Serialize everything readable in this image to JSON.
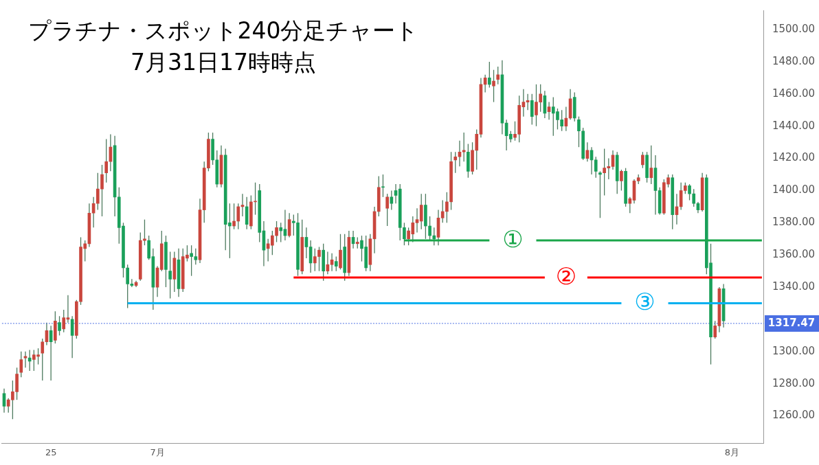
{
  "chart_data": {
    "type": "candlestick",
    "title": "プラチナ・スポット240分足チャート",
    "subtitle": "7月31日17時時点",
    "categories": [
      null,
      null,
      null,
      null,
      null,
      null,
      null,
      null,
      null,
      null,
      null,
      "25",
      null,
      null,
      null,
      null,
      null,
      null,
      null,
      null,
      null,
      null,
      null,
      null,
      null,
      null,
      null,
      null,
      null,
      null,
      null,
      null,
      null,
      null,
      null,
      null,
      "7月",
      null,
      null,
      null,
      null,
      null,
      null,
      null,
      null,
      null,
      null,
      null,
      null,
      null,
      null,
      null,
      null,
      null,
      null,
      null,
      null,
      null,
      null,
      null,
      null,
      null,
      null,
      null,
      null,
      null,
      null,
      null,
      null,
      null,
      null,
      null,
      null,
      null,
      null,
      null,
      null,
      null,
      null,
      null,
      null,
      null,
      null,
      null,
      null,
      null,
      null,
      null,
      null,
      null,
      null,
      null,
      null,
      null,
      null,
      null,
      null,
      null,
      null,
      null,
      null,
      null,
      null,
      null,
      null,
      null,
      null,
      null,
      null,
      null,
      null,
      null,
      null,
      null,
      null,
      null,
      null,
      null,
      null,
      null,
      null,
      null,
      null,
      null,
      null,
      null,
      null,
      null,
      null,
      null,
      null,
      null,
      null,
      null,
      null,
      null,
      null,
      null,
      null,
      null,
      null,
      null,
      null,
      null,
      null,
      null,
      null,
      null,
      null,
      null,
      null,
      null,
      null,
      null,
      null,
      null,
      null,
      null,
      null,
      null,
      null,
      null,
      null,
      null,
      null,
      null,
      null,
      null,
      null,
      null,
      null,
      "8月",
      null,
      null,
      null,
      null,
      null,
      null,
      null
    ],
    "ohlc": [
      [
        1274,
        1277,
        1262,
        1266
      ],
      [
        1266,
        1271,
        1262,
        1270
      ],
      [
        1270,
        1282,
        1258,
        1275
      ],
      [
        1275,
        1290,
        1270,
        1286
      ],
      [
        1287,
        1300,
        1284,
        1295
      ],
      [
        1296,
        1300,
        1290,
        1297
      ],
      [
        1296,
        1301,
        1288,
        1294
      ],
      [
        1295,
        1301,
        1288,
        1298
      ],
      [
        1297,
        1302,
        1292,
        1298
      ],
      [
        1299,
        1308,
        1282,
        1306
      ],
      [
        1306,
        1318,
        1304,
        1313
      ],
      [
        1313,
        1316,
        1282,
        1306
      ],
      [
        1307,
        1325,
        1305,
        1319
      ],
      [
        1318,
        1322,
        1310,
        1313
      ],
      [
        1314,
        1326,
        1312,
        1321
      ],
      [
        1320,
        1335,
        1318,
        1321
      ],
      [
        1320,
        1322,
        1296,
        1310
      ],
      [
        1310,
        1332,
        1308,
        1331
      ],
      [
        1331,
        1371,
        1329,
        1365
      ],
      [
        1364,
        1369,
        1356,
        1367
      ],
      [
        1367,
        1392,
        1365,
        1386
      ],
      [
        1386,
        1396,
        1377,
        1392
      ],
      [
        1392,
        1411,
        1388,
        1401
      ],
      [
        1401,
        1416,
        1384,
        1410
      ],
      [
        1411,
        1432,
        1405,
        1418
      ],
      [
        1418,
        1435,
        1412,
        1427
      ],
      [
        1428,
        1434,
        1384,
        1396
      ],
      [
        1396,
        1402,
        1367,
        1377
      ],
      [
        1378,
        1380,
        1346,
        1352
      ],
      [
        1352,
        1354,
        1327,
        1342
      ],
      [
        1342,
        1345,
        1340,
        1341
      ],
      [
        1341,
        1344,
        1340,
        1343
      ],
      [
        1345,
        1374,
        1344,
        1369
      ],
      [
        1369,
        1382,
        1366,
        1370
      ],
      [
        1369,
        1372,
        1357,
        1358
      ],
      [
        1359,
        1364,
        1326,
        1340
      ],
      [
        1340,
        1353,
        1334,
        1352
      ],
      [
        1351,
        1375,
        1350,
        1367
      ],
      [
        1368,
        1372,
        1340,
        1351
      ],
      [
        1350,
        1362,
        1333,
        1345
      ],
      [
        1345,
        1362,
        1337,
        1358
      ],
      [
        1357,
        1364,
        1334,
        1339
      ],
      [
        1339,
        1364,
        1337,
        1359
      ],
      [
        1358,
        1366,
        1356,
        1360
      ],
      [
        1361,
        1366,
        1347,
        1359
      ],
      [
        1359,
        1364,
        1354,
        1357
      ],
      [
        1357,
        1395,
        1355,
        1388
      ],
      [
        1388,
        1418,
        1380,
        1414
      ],
      [
        1414,
        1436,
        1412,
        1432
      ],
      [
        1432,
        1436,
        1416,
        1419
      ],
      [
        1419,
        1425,
        1402,
        1404
      ],
      [
        1404,
        1428,
        1402,
        1422
      ],
      [
        1422,
        1426,
        1363,
        1379
      ],
      [
        1380,
        1392,
        1358,
        1378
      ],
      [
        1378,
        1392,
        1376,
        1381
      ],
      [
        1381,
        1392,
        1376,
        1390
      ],
      [
        1390,
        1398,
        1384,
        1391
      ],
      [
        1390,
        1396,
        1376,
        1379
      ],
      [
        1378,
        1397,
        1376,
        1393
      ],
      [
        1393,
        1405,
        1385,
        1393
      ],
      [
        1400,
        1404,
        1368,
        1374
      ],
      [
        1375,
        1381,
        1353,
        1363
      ],
      [
        1364,
        1370,
        1356,
        1367
      ],
      [
        1366,
        1375,
        1360,
        1372
      ],
      [
        1372,
        1381,
        1368,
        1377
      ],
      [
        1377,
        1380,
        1368,
        1375
      ],
      [
        1376,
        1388,
        1369,
        1372
      ],
      [
        1372,
        1386,
        1371,
        1382
      ],
      [
        1381,
        1385,
        1372,
        1380
      ],
      [
        1380,
        1386,
        1347,
        1351
      ],
      [
        1350,
        1382,
        1348,
        1371
      ],
      [
        1371,
        1377,
        1358,
        1365
      ],
      [
        1365,
        1369,
        1349,
        1355
      ],
      [
        1355,
        1364,
        1350,
        1359
      ],
      [
        1359,
        1365,
        1350,
        1363
      ],
      [
        1363,
        1367,
        1344,
        1350
      ],
      [
        1350,
        1362,
        1348,
        1354
      ],
      [
        1354,
        1361,
        1350,
        1357
      ],
      [
        1356,
        1359,
        1350,
        1353
      ],
      [
        1352,
        1373,
        1351,
        1363
      ],
      [
        1365,
        1373,
        1344,
        1349
      ],
      [
        1349,
        1375,
        1347,
        1371
      ],
      [
        1371,
        1375,
        1364,
        1367
      ],
      [
        1367,
        1371,
        1364,
        1368
      ],
      [
        1369,
        1372,
        1356,
        1364
      ],
      [
        1365,
        1372,
        1350,
        1352
      ],
      [
        1354,
        1373,
        1350,
        1370
      ],
      [
        1370,
        1390,
        1361,
        1387
      ],
      [
        1387,
        1409,
        1384,
        1402
      ],
      [
        1402,
        1410,
        1396,
        1402
      ],
      [
        1389,
        1398,
        1378,
        1396
      ],
      [
        1396,
        1400,
        1388,
        1392
      ],
      [
        1400,
        1404,
        1392,
        1397
      ],
      [
        1401,
        1404,
        1369,
        1377
      ],
      [
        1377,
        1380,
        1366,
        1370
      ],
      [
        1370,
        1377,
        1366,
        1375
      ],
      [
        1373,
        1384,
        1368,
        1380
      ],
      [
        1380,
        1389,
        1374,
        1382
      ],
      [
        1381,
        1398,
        1376,
        1391
      ],
      [
        1391,
        1398,
        1370,
        1378
      ],
      [
        1378,
        1384,
        1369,
        1372
      ],
      [
        1372,
        1377,
        1366,
        1370
      ],
      [
        1371,
        1388,
        1366,
        1383
      ],
      [
        1383,
        1394,
        1380,
        1387
      ],
      [
        1387,
        1399,
        1380,
        1393
      ],
      [
        1393,
        1424,
        1388,
        1418
      ],
      [
        1419,
        1424,
        1411,
        1421
      ],
      [
        1421,
        1431,
        1415,
        1424
      ],
      [
        1424,
        1436,
        1418,
        1425
      ],
      [
        1424,
        1429,
        1408,
        1412
      ],
      [
        1412,
        1430,
        1410,
        1425
      ],
      [
        1425,
        1438,
        1413,
        1435
      ],
      [
        1435,
        1470,
        1433,
        1466
      ],
      [
        1466,
        1472,
        1461,
        1470
      ],
      [
        1470,
        1480,
        1464,
        1466
      ],
      [
        1465,
        1475,
        1455,
        1468
      ],
      [
        1469,
        1477,
        1466,
        1472
      ],
      [
        1472,
        1481,
        1435,
        1442
      ],
      [
        1442,
        1444,
        1425,
        1434
      ],
      [
        1435,
        1437,
        1430,
        1432
      ],
      [
        1433,
        1443,
        1431,
        1435
      ],
      [
        1435,
        1459,
        1430,
        1453
      ],
      [
        1452,
        1463,
        1446,
        1455
      ],
      [
        1455,
        1460,
        1450,
        1456
      ],
      [
        1456,
        1460,
        1441,
        1446
      ],
      [
        1447,
        1466,
        1440,
        1455
      ],
      [
        1455,
        1466,
        1449,
        1460
      ],
      [
        1459,
        1462,
        1445,
        1448
      ],
      [
        1449,
        1455,
        1444,
        1452
      ],
      [
        1452,
        1458,
        1434,
        1448
      ],
      [
        1449,
        1451,
        1438,
        1444
      ],
      [
        1444,
        1450,
        1437,
        1440
      ],
      [
        1440,
        1452,
        1437,
        1445
      ],
      [
        1445,
        1463,
        1444,
        1457
      ],
      [
        1458,
        1461,
        1443,
        1445
      ],
      [
        1444,
        1446,
        1427,
        1437
      ],
      [
        1437,
        1439,
        1419,
        1420
      ],
      [
        1420,
        1430,
        1418,
        1425
      ],
      [
        1425,
        1427,
        1410,
        1419
      ],
      [
        1419,
        1421,
        1408,
        1412
      ],
      [
        1411,
        1412,
        1383,
        1410
      ],
      [
        1411,
        1426,
        1397,
        1414
      ],
      [
        1414,
        1420,
        1407,
        1415
      ],
      [
        1415,
        1425,
        1413,
        1422
      ],
      [
        1422,
        1424,
        1398,
        1406
      ],
      [
        1406,
        1413,
        1400,
        1412
      ],
      [
        1412,
        1414,
        1390,
        1392
      ],
      [
        1392,
        1396,
        1386,
        1395
      ],
      [
        1394,
        1407,
        1392,
        1406
      ],
      [
        1406,
        1410,
        1404,
        1408
      ],
      [
        1416,
        1424,
        1414,
        1422
      ],
      [
        1422,
        1424,
        1405,
        1408
      ],
      [
        1408,
        1428,
        1404,
        1414
      ],
      [
        1414,
        1422,
        1385,
        1400
      ],
      [
        1400,
        1402,
        1385,
        1386
      ],
      [
        1386,
        1407,
        1385,
        1405
      ],
      [
        1404,
        1410,
        1402,
        1408
      ],
      [
        1408,
        1410,
        1376,
        1385
      ],
      [
        1385,
        1398,
        1379,
        1390
      ],
      [
        1390,
        1405,
        1388,
        1400
      ],
      [
        1400,
        1405,
        1398,
        1403
      ],
      [
        1403,
        1404,
        1394,
        1398
      ],
      [
        1398,
        1401,
        1390,
        1392
      ],
      [
        1392,
        1393,
        1386,
        1388
      ],
      [
        1388,
        1411,
        1387,
        1408
      ],
      [
        1408,
        1410,
        1348,
        1352
      ],
      [
        1355,
        1367,
        1292,
        1309
      ],
      [
        1309,
        1319,
        1308,
        1316
      ],
      [
        1316,
        1340,
        1312,
        1339
      ],
      [
        1339,
        1342,
        1315,
        1319
      ],
      null,
      null,
      null,
      null,
      null,
      null,
      null,
      null,
      null
    ],
    "colors": [
      "#1aa05a",
      "#c9463d",
      "#c9463d",
      "#c9463d",
      "#c9463d",
      "#c9463d",
      "#1aa05a",
      "#c9463d",
      "#c9463d",
      "#c9463d",
      "#c9463d",
      "#1aa05a",
      "#c9463d",
      "#1aa05a",
      "#c9463d",
      "#c9463d",
      "#1aa05a",
      "#c9463d",
      "#c9463d",
      "#c9463d",
      "#c9463d",
      "#c9463d",
      "#c9463d",
      "#c9463d",
      "#c9463d",
      "#c9463d",
      "#1aa05a",
      "#1aa05a",
      "#1aa05a",
      "#1aa05a",
      "#1aa05a",
      "#c9463d",
      "#c9463d",
      "#c9463d",
      "#1aa05a",
      "#1aa05a",
      "#c9463d",
      "#c9463d",
      "#1aa05a",
      "#1aa05a",
      "#c9463d",
      "#1aa05a",
      "#c9463d",
      "#c9463d",
      "#1aa05a",
      "#1aa05a",
      "#c9463d",
      "#c9463d",
      "#c9463d",
      "#1aa05a",
      "#1aa05a",
      "#c9463d",
      "#1aa05a",
      "#1aa05a",
      "#c9463d",
      "#c9463d",
      "#c9463d",
      "#1aa05a",
      "#c9463d",
      "#c9463d",
      "#1aa05a",
      "#1aa05a",
      "#c9463d",
      "#c9463d",
      "#c9463d",
      "#1aa05a",
      "#1aa05a",
      "#c9463d",
      "#1aa05a",
      "#1aa05a",
      "#c9463d",
      "#1aa05a",
      "#1aa05a",
      "#c9463d",
      "#c9463d",
      "#1aa05a",
      "#c9463d",
      "#c9463d",
      "#1aa05a",
      "#c9463d",
      "#1aa05a",
      "#c9463d",
      "#1aa05a",
      "#c9463d",
      "#1aa05a",
      "#1aa05a",
      "#c9463d",
      "#c9463d",
      "#c9463d",
      "#1aa05a",
      "#c9463d",
      "#1aa05a",
      "#1aa05a",
      "#1aa05a",
      "#1aa05a",
      "#c9463d",
      "#c9463d",
      "#c9463d",
      "#c9463d",
      "#1aa05a",
      "#1aa05a",
      "#1aa05a",
      "#c9463d",
      "#c9463d",
      "#c9463d",
      "#c9463d",
      "#c9463d",
      "#c9463d",
      "#c9463d",
      "#1aa05a",
      "#c9463d",
      "#c9463d",
      "#c9463d",
      "#c9463d",
      "#1aa05a",
      "#c9463d",
      "#c9463d",
      "#1aa05a",
      "#1aa05a",
      "#1aa05a",
      "#c9463d",
      "#c9463d",
      "#c9463d",
      "#c9463d",
      "#1aa05a",
      "#c9463d",
      "#c9463d",
      "#1aa05a",
      "#c9463d",
      "#1aa05a",
      "#1aa05a",
      "#1aa05a",
      "#c9463d",
      "#c9463d",
      "#1aa05a",
      "#1aa05a",
      "#1aa05a",
      "#c9463d",
      "#1aa05a",
      "#1aa05a",
      "#1aa05a",
      "#c9463d",
      "#c9463d",
      "#c9463d",
      "#1aa05a",
      "#c9463d",
      "#1aa05a",
      "#c9463d",
      "#c9463d",
      "#c9463d",
      "#c9463d",
      "#1aa05a",
      "#c9463d",
      "#1aa05a",
      "#1aa05a",
      "#c9463d",
      "#c9463d",
      "#1aa05a",
      "#c9463d",
      "#c9463d",
      "#c9463d",
      "#1aa05a",
      "#1aa05a",
      "#1aa05a",
      "#c9463d",
      "#1aa05a",
      "#1aa05a",
      "#c9463d",
      "#c9463d",
      "#1aa05a",
      null,
      null,
      null,
      null,
      null,
      null,
      null,
      null,
      null
    ],
    "series": [
      {
        "type": "line",
        "name": "①",
        "color": "#1aa64a",
        "values": [
          null,
          null,
          null,
          null,
          null,
          null,
          null,
          null,
          null,
          null,
          null,
          null,
          null,
          null,
          null,
          null,
          null,
          null,
          null,
          null,
          null,
          null,
          null,
          null,
          null,
          null,
          null,
          null,
          null,
          null,
          null,
          null,
          null,
          null,
          null,
          null,
          null,
          null,
          null,
          null,
          null,
          null,
          null,
          null,
          null,
          null,
          null,
          null,
          null,
          null,
          null,
          null,
          null,
          null,
          null,
          null,
          null,
          null,
          null,
          null,
          null,
          null,
          null,
          null,
          null,
          null,
          null,
          null,
          null,
          null,
          null,
          null,
          null,
          null,
          null,
          null,
          null,
          null,
          null,
          null,
          null,
          null,
          null,
          null,
          null,
          null,
          null,
          null,
          null,
          null,
          null,
          null,
          null,
          null,
          1369,
          1369,
          1369,
          1369,
          1369,
          1369,
          1369,
          1369,
          1369,
          1369,
          1369,
          1369,
          1369,
          1369,
          1369,
          1369,
          1369,
          1369,
          1369,
          1369,
          1369,
          null,
          null,
          null,
          null,
          null,
          null,
          null,
          null,
          null,
          null,
          1369,
          1369,
          1369,
          1369,
          1369,
          1369,
          1369,
          1369,
          1369,
          1369,
          1369,
          1369,
          1369,
          1369,
          1369,
          1369,
          1369,
          1369,
          1369,
          1369,
          1369,
          1369,
          1369,
          1369,
          1369,
          1369,
          1369,
          1369,
          1369,
          1369,
          1369,
          1369,
          1369,
          1369,
          1369,
          1369,
          1369,
          1369,
          1369,
          1369,
          1369,
          1369,
          1369,
          1369,
          1369,
          1369,
          1369,
          1369,
          1369,
          1369,
          1369,
          1369,
          1369,
          1369
        ]
      },
      {
        "type": "line",
        "name": "②",
        "color": "#ff0000",
        "values": [
          null,
          null,
          null,
          null,
          null,
          null,
          null,
          null,
          null,
          null,
          null,
          null,
          null,
          null,
          null,
          null,
          null,
          null,
          null,
          null,
          null,
          null,
          null,
          null,
          null,
          null,
          null,
          null,
          null,
          null,
          null,
          null,
          null,
          null,
          null,
          null,
          null,
          null,
          null,
          null,
          null,
          null,
          null,
          null,
          null,
          null,
          null,
          null,
          null,
          null,
          null,
          null,
          null,
          null,
          null,
          null,
          null,
          null,
          null,
          null,
          null,
          null,
          null,
          null,
          null,
          null,
          null,
          null,
          1346,
          1346,
          1346,
          1346,
          1346,
          1346,
          1346,
          1346,
          1346,
          1346,
          1346,
          1346,
          1346,
          1346,
          1346,
          1346,
          1346,
          1346,
          1346,
          1346,
          1346,
          1346,
          1346,
          1346,
          1346,
          1346,
          1346,
          1346,
          1346,
          1346,
          1346,
          1346,
          1346,
          1346,
          1346,
          1346,
          1346,
          1346,
          1346,
          1346,
          1346,
          1346,
          1346,
          1346,
          1346,
          1346,
          1346,
          1346,
          1346,
          1346,
          1346,
          1346,
          1346,
          1346,
          1346,
          1346,
          1346,
          1346,
          1346,
          1346,
          null,
          null,
          null,
          null,
          null,
          null,
          null,
          null,
          null,
          1346,
          1346,
          1346,
          1346,
          1346,
          1346,
          1346,
          1346,
          1346,
          1346,
          1346,
          1346,
          1346,
          1346,
          1346,
          1346,
          1346,
          1346,
          1346,
          1346,
          1346,
          1346,
          1346,
          1346,
          1346,
          1346,
          1346,
          1346,
          1346,
          1346,
          1346,
          1346,
          1346,
          1346,
          1346,
          1346,
          1346,
          1346,
          1346,
          1346,
          1346,
          1346
        ]
      },
      {
        "type": "line",
        "name": "③",
        "color": "#00b0f0",
        "values": [
          null,
          null,
          null,
          null,
          null,
          null,
          null,
          null,
          null,
          null,
          null,
          null,
          null,
          null,
          null,
          null,
          null,
          null,
          null,
          null,
          null,
          null,
          null,
          null,
          null,
          null,
          null,
          null,
          null,
          1330,
          1330,
          1330,
          1330,
          1330,
          1330,
          1330,
          1330,
          1330,
          1330,
          1330,
          1330,
          1330,
          1330,
          1330,
          1330,
          1330,
          1330,
          1330,
          1330,
          1330,
          1330,
          1330,
          1330,
          1330,
          1330,
          1330,
          1330,
          1330,
          1330,
          1330,
          1330,
          1330,
          1330,
          1330,
          1330,
          1330,
          1330,
          1330,
          1330,
          1330,
          1330,
          1330,
          1330,
          1330,
          1330,
          1330,
          1330,
          1330,
          1330,
          1330,
          1330,
          1330,
          1330,
          1330,
          1330,
          1330,
          1330,
          1330,
          1330,
          1330,
          1330,
          1330,
          1330,
          1330,
          1330,
          1330,
          1330,
          1330,
          1330,
          1330,
          1330,
          1330,
          1330,
          1330,
          1330,
          1330,
          1330,
          1330,
          1330,
          1330,
          1330,
          1330,
          1330,
          1330,
          1330,
          1330,
          1330,
          1330,
          1330,
          1330,
          1330,
          1330,
          1330,
          1330,
          1330,
          1330,
          1330,
          1330,
          1330,
          1330,
          1330,
          1330,
          1330,
          1330,
          1330,
          1330,
          1330,
          1330,
          1330,
          1330,
          1330,
          1330,
          1330,
          1330,
          1330,
          1330,
          null,
          null,
          null,
          null,
          null,
          null,
          null,
          null,
          null,
          null,
          1330,
          1330,
          1330,
          1330,
          1330,
          1330,
          1330,
          1330,
          1330,
          1330,
          1330,
          1330,
          1330,
          1330,
          1330,
          1330,
          1330,
          1330,
          1330,
          1330,
          1330,
          1330,
          1330
        ]
      }
    ],
    "ref_lines": [
      {
        "axis": "y",
        "value": 1317.47,
        "label": "1317.47",
        "color": "#4a6fe3",
        "line_style": "dotted"
      }
    ],
    "ylim": [
      1243,
      1512
    ],
    "yticks": [
      {
        "value": 1260,
        "label": "1260.00"
      },
      {
        "value": 1280,
        "label": "1280.00"
      },
      {
        "value": 1300,
        "label": "1300.00"
      },
      {
        "value": 1340,
        "label": "1340.00"
      },
      {
        "value": 1360,
        "label": "1360.00"
      },
      {
        "value": 1380,
        "label": "1380.00"
      },
      {
        "value": 1400,
        "label": "1400.00"
      },
      {
        "value": 1420,
        "label": "1420.00"
      },
      {
        "value": 1440,
        "label": "1440.00"
      },
      {
        "value": 1460,
        "label": "1460.00"
      },
      {
        "value": 1480,
        "label": "1480.00"
      },
      {
        "value": 1500,
        "label": "1500.00"
      }
    ]
  }
}
